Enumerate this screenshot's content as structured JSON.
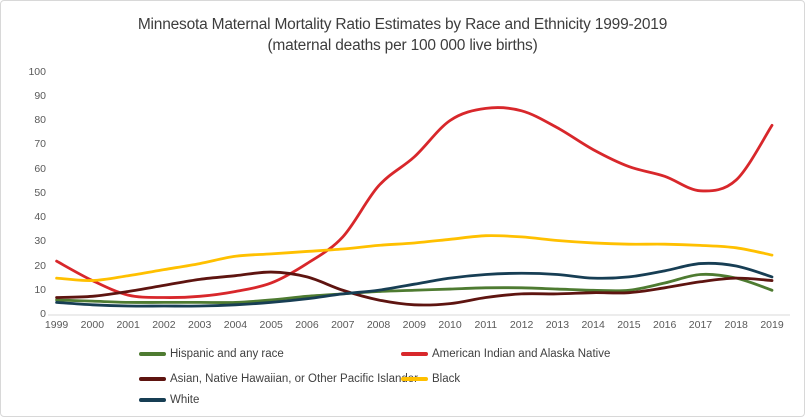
{
  "chart_data": {
    "type": "line",
    "title": "Minnesota Maternal Mortality Ratio Estimates by Race and Ethnicity 1999-2019",
    "subtitle": "(maternal deaths per 100 000 live births)",
    "categories": [
      "1999",
      "2000",
      "2001",
      "2002",
      "2003",
      "2004",
      "2005",
      "2006",
      "2007",
      "2008",
      "2009",
      "2010",
      "2011",
      "2012",
      "2013",
      "2014",
      "2015",
      "2016",
      "2017",
      "2018",
      "2019"
    ],
    "series": [
      {
        "name": "Hispanic and any race",
        "color": "#4E7B31",
        "values": [
          6,
          5.5,
          5,
          5,
          5,
          5,
          6,
          7.5,
          8.5,
          9.5,
          10,
          10.5,
          11,
          11,
          10.5,
          10,
          10,
          13,
          16.5,
          15,
          10
        ]
      },
      {
        "name": "American Indian and Alaska Native",
        "color": "#D8272B",
        "values": [
          22,
          14,
          8,
          7,
          7.5,
          9.5,
          13,
          21,
          32,
          53,
          65,
          80,
          85,
          84,
          77,
          68,
          61,
          57,
          51,
          55.5,
          78
        ]
      },
      {
        "name": "Asian, Native Hawaiian, or Other Pacific Islander",
        "color": "#5E1410",
        "values": [
          7,
          7.5,
          9.5,
          12,
          14.5,
          16,
          17.5,
          15.5,
          10,
          6,
          4,
          4.5,
          7,
          8.5,
          8.5,
          9,
          9,
          11,
          13.5,
          15,
          14
        ]
      },
      {
        "name": "Black",
        "color": "#FFC000",
        "values": [
          15,
          14,
          16,
          18.5,
          21,
          24,
          25,
          26,
          27,
          28.5,
          29.5,
          31,
          32.5,
          32,
          30.5,
          29.5,
          29,
          29,
          28.5,
          27.5,
          24.5
        ]
      },
      {
        "name": "White",
        "color": "#173E54",
        "values": [
          5,
          4,
          3.5,
          3.5,
          3.5,
          4,
          5,
          6.5,
          8.5,
          10,
          12.5,
          15,
          16.5,
          17,
          16.5,
          15,
          15.5,
          18,
          21,
          20,
          15.5
        ]
      }
    ],
    "ylim": [
      0,
      100
    ],
    "yticks": [
      0,
      10,
      20,
      30,
      40,
      50,
      60,
      70,
      80,
      90,
      100
    ],
    "grid": false,
    "smooth_lines": true,
    "legend_position": "bottom",
    "axis_line_color": "#D9D9D9",
    "tick_label_color": "#595959",
    "legend_text_color": "#404040",
    "title_color": "#3D3D3D"
  }
}
